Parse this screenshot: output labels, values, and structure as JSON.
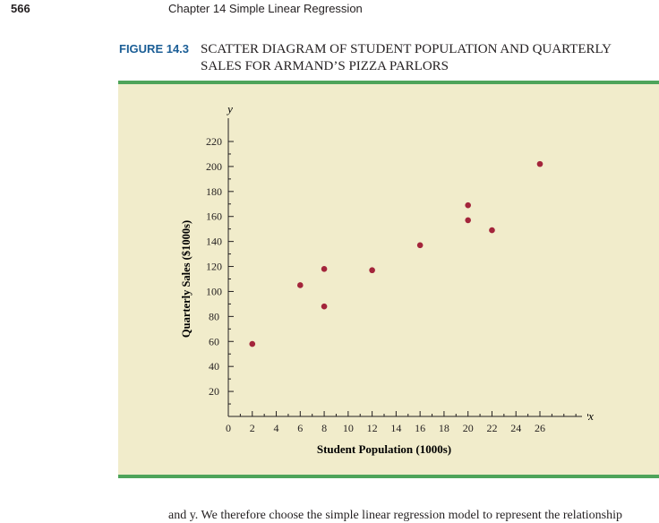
{
  "page": {
    "number": "566",
    "running_head": "Chapter 14   Simple Linear Regression",
    "figure_label": "FIGURE 14.3",
    "figure_title_line1": "SCATTER DIAGRAM OF STUDENT POPULATION AND QUARTERLY",
    "figure_title_line2": "SALES FOR ARMAND’S PIZZA PARLORS",
    "body_text": "and y. We therefore choose the simple linear regression model to represent the relationship"
  },
  "colors": {
    "panel_bg": "#f1eccb",
    "rule": "#4ea45a",
    "point": "#a3253b",
    "axis": "#231f20",
    "label_blue": "#1b5e96"
  },
  "chart_data": {
    "type": "scatter",
    "xlabel": "Student Population (1000s)",
    "ylabel": "Quarterly Sales ($1000s)",
    "x_axis_letter": "x",
    "y_axis_letter": "y",
    "xlim": [
      0,
      26
    ],
    "ylim": [
      0,
      220
    ],
    "x_ticks": [
      0,
      2,
      4,
      6,
      8,
      10,
      12,
      14,
      16,
      18,
      20,
      22,
      24,
      26
    ],
    "y_ticks": [
      20,
      40,
      60,
      80,
      100,
      120,
      140,
      160,
      180,
      200,
      220
    ],
    "grid": false,
    "points": [
      {
        "x": 2,
        "y": 58
      },
      {
        "x": 6,
        "y": 105
      },
      {
        "x": 8,
        "y": 88
      },
      {
        "x": 8,
        "y": 118
      },
      {
        "x": 12,
        "y": 117
      },
      {
        "x": 16,
        "y": 137
      },
      {
        "x": 20,
        "y": 157
      },
      {
        "x": 20,
        "y": 169
      },
      {
        "x": 22,
        "y": 149
      },
      {
        "x": 26,
        "y": 202
      }
    ]
  }
}
